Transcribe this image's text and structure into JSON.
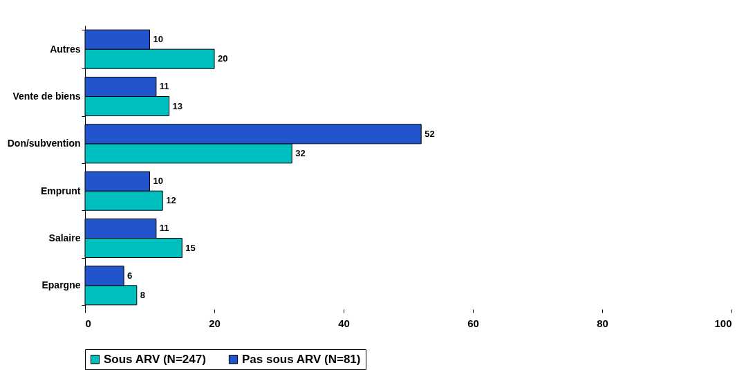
{
  "chart_data": {
    "type": "bar",
    "orientation": "horizontal",
    "categories": [
      "Autres",
      "Vente de biens",
      "Don/subvention",
      "Emprunt",
      "Salaire",
      "Epargne"
    ],
    "series": [
      {
        "name": "Sous ARV (N=247)",
        "color": "#00bfbf",
        "values": [
          20,
          13,
          32,
          12,
          15,
          8
        ]
      },
      {
        "name": "Pas sous ARV (N=81)",
        "color": "#2255cc",
        "values": [
          10,
          11,
          52,
          10,
          11,
          6
        ]
      }
    ],
    "xlim": [
      0,
      100
    ],
    "xticks": [
      0,
      20,
      40,
      60,
      80,
      100
    ],
    "grid": false,
    "legend": "bottom",
    "data_labels": true
  }
}
